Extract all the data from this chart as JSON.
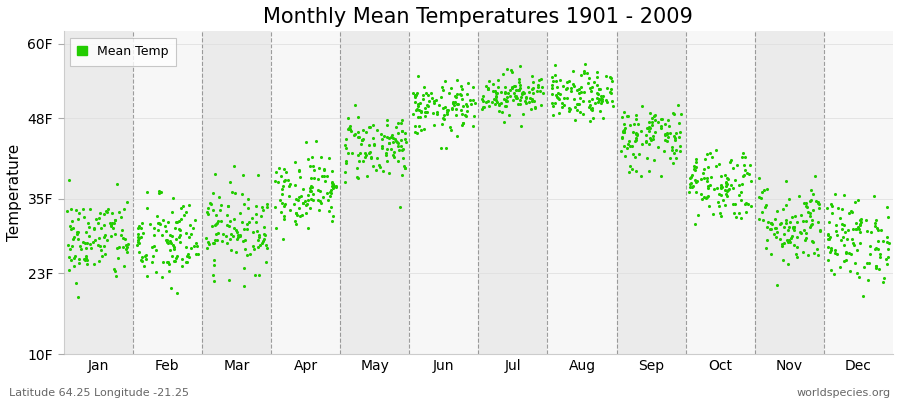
{
  "title": "Monthly Mean Temperatures 1901 - 2009",
  "ylabel": "Temperature",
  "xlabel": "",
  "footer_left": "Latitude 64.25 Longitude -21.25",
  "footer_right": "worldspecies.org",
  "legend_label": "Mean Temp",
  "dot_color": "#22CC00",
  "dot_size": 5,
  "ylim": [
    10,
    62
  ],
  "yticks": [
    10,
    23,
    35,
    48,
    60
  ],
  "ytick_labels": [
    "10F",
    "23F",
    "35F",
    "48F",
    "60F"
  ],
  "months": [
    "Jan",
    "Feb",
    "Mar",
    "Apr",
    "May",
    "Jun",
    "Jul",
    "Aug",
    "Sep",
    "Oct",
    "Nov",
    "Dec"
  ],
  "month_mean_F": [
    28.5,
    28.0,
    30.5,
    36.5,
    43.5,
    49.5,
    52.0,
    51.5,
    45.0,
    37.5,
    31.0,
    28.5
  ],
  "month_std_F": [
    3.5,
    3.8,
    3.5,
    3.0,
    2.8,
    2.2,
    1.8,
    2.0,
    2.8,
    3.0,
    3.5,
    3.5
  ],
  "n_years": 109,
  "background_colors": [
    "#ebebeb",
    "#f7f7f7"
  ],
  "grid_color": "#777777",
  "title_fontsize": 15,
  "tick_fontsize": 10,
  "label_fontsize": 11
}
